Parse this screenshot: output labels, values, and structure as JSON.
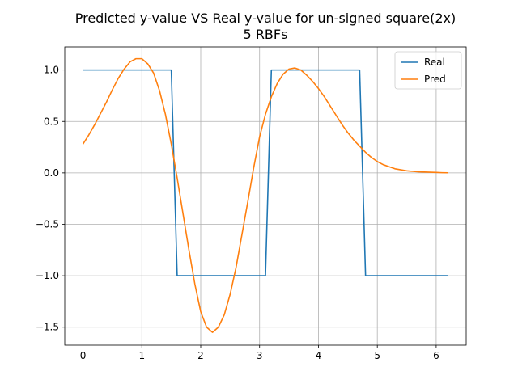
{
  "chart_data": {
    "type": "line",
    "title": "Predicted y-value VS Real y-value for un-signed square(2x)",
    "subtitle": "5 RBFs",
    "xlabel": "",
    "ylabel": "",
    "xlim": [
      -0.31,
      6.51
    ],
    "ylim": [
      -1.675,
      1.225
    ],
    "x_ticks": [
      0,
      1,
      2,
      3,
      4,
      5,
      6
    ],
    "y_ticks": [
      -1.5,
      -1.0,
      -0.5,
      0.0,
      0.5,
      1.0
    ],
    "x_tick_labels": [
      "0",
      "1",
      "2",
      "3",
      "4",
      "5",
      "6"
    ],
    "y_tick_labels": [
      "−1.5",
      "−1.0",
      "−0.5",
      "0.0",
      "0.5",
      "1.0"
    ],
    "grid": true,
    "legend_position": "top-right",
    "series": [
      {
        "name": "Real",
        "color": "#1f77b4",
        "x": [
          0.0,
          1.5,
          1.6,
          3.1,
          3.2,
          4.7,
          4.8,
          6.2
        ],
        "y": [
          1.0,
          1.0,
          -1.0,
          -1.0,
          1.0,
          1.0,
          -1.0,
          -1.0
        ]
      },
      {
        "name": "Pred",
        "color": "#ff7f0e",
        "x": [
          0.0,
          0.1,
          0.2,
          0.3,
          0.4,
          0.5,
          0.6,
          0.7,
          0.8,
          0.9,
          1.0,
          1.1,
          1.2,
          1.3,
          1.4,
          1.5,
          1.6,
          1.7,
          1.8,
          1.9,
          2.0,
          2.1,
          2.2,
          2.3,
          2.4,
          2.5,
          2.6,
          2.7,
          2.8,
          2.9,
          3.0,
          3.1,
          3.2,
          3.3,
          3.4,
          3.5,
          3.6,
          3.7,
          3.8,
          3.9,
          4.0,
          4.1,
          4.2,
          4.3,
          4.4,
          4.5,
          4.6,
          4.7,
          4.8,
          4.9,
          5.0,
          5.1,
          5.2,
          5.3,
          5.4,
          5.5,
          5.6,
          5.7,
          5.8,
          5.9,
          6.0,
          6.1,
          6.2
        ],
        "y": [
          0.28,
          0.37,
          0.47,
          0.58,
          0.69,
          0.81,
          0.92,
          1.01,
          1.08,
          1.11,
          1.11,
          1.06,
          0.97,
          0.8,
          0.57,
          0.28,
          -0.05,
          -0.4,
          -0.75,
          -1.08,
          -1.35,
          -1.5,
          -1.55,
          -1.5,
          -1.38,
          -1.18,
          -0.92,
          -0.6,
          -0.28,
          0.05,
          0.35,
          0.57,
          0.74,
          0.87,
          0.96,
          1.01,
          1.02,
          1.0,
          0.95,
          0.89,
          0.82,
          0.74,
          0.65,
          0.56,
          0.47,
          0.39,
          0.32,
          0.26,
          0.2,
          0.15,
          0.11,
          0.08,
          0.06,
          0.04,
          0.03,
          0.02,
          0.015,
          0.01,
          0.008,
          0.006,
          0.004,
          0.002,
          0.001
        ]
      }
    ]
  }
}
